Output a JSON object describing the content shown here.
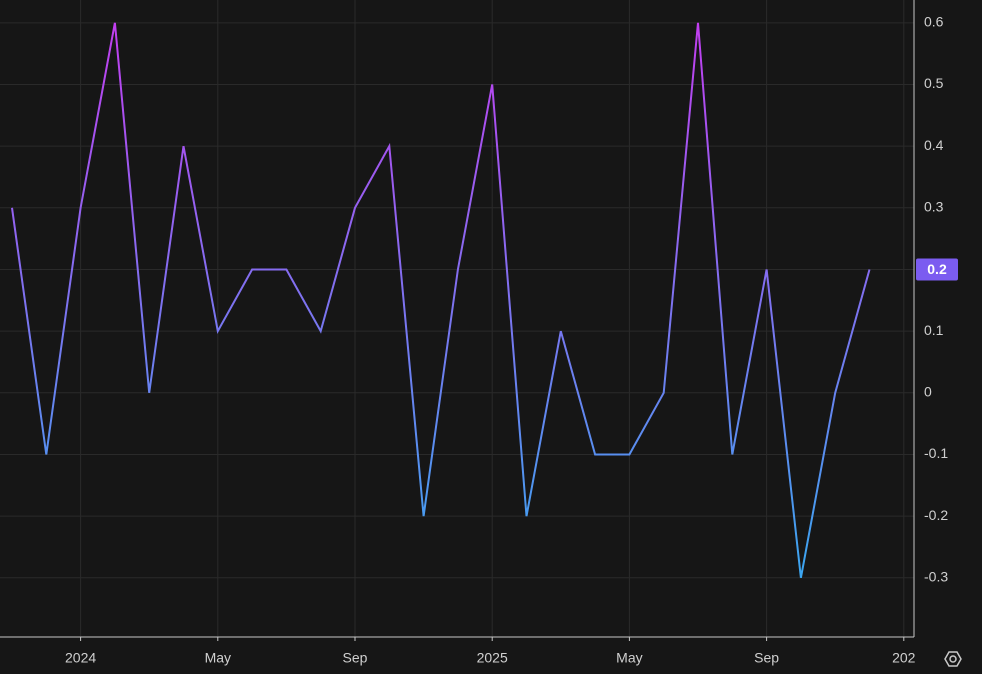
{
  "chart_data": {
    "type": "line",
    "x": [
      "2023-11",
      "2023-12",
      "2024-01",
      "2024-02",
      "2024-03",
      "2024-04",
      "2024-05",
      "2024-06",
      "2024-07",
      "2024-08",
      "2024-09",
      "2024-10",
      "2024-11",
      "2024-12",
      "2025-01",
      "2025-02",
      "2025-03",
      "2025-04",
      "2025-05",
      "2025-06",
      "2025-07",
      "2025-08",
      "2025-09",
      "2025-10",
      "2025-11",
      "2025-12"
    ],
    "series": [
      {
        "colors": [
          "#c23ef0",
          "#3aa6f0"
        ],
        "values": [
          0.3,
          -0.1,
          0.3,
          0.6,
          0.0,
          0.4,
          0.1,
          0.2,
          0.2,
          0.1,
          0.3,
          0.4,
          -0.2,
          0.2,
          0.5,
          -0.2,
          0.1,
          -0.1,
          -0.1,
          0.0,
          0.6,
          -0.1,
          0.2,
          -0.3,
          0.0,
          0.2
        ]
      }
    ],
    "ylim": [
      -0.396,
      0.637
    ],
    "yticks": [
      0.6,
      0.5,
      0.4,
      0.3,
      0.2,
      0.1,
      0,
      -0.1,
      -0.2,
      -0.3
    ],
    "xticks": [
      {
        "value": "2024-01",
        "label": "2024"
      },
      {
        "value": "2024-05",
        "label": "May"
      },
      {
        "value": "2024-09",
        "label": "Sep"
      },
      {
        "value": "2025-01",
        "label": "2025"
      },
      {
        "value": "2025-05",
        "label": "May"
      },
      {
        "value": "2025-09",
        "label": "Sep"
      },
      {
        "value": "2026-01",
        "label": "202"
      }
    ],
    "grid": true,
    "last_value_color": "#7b5cf0"
  }
}
